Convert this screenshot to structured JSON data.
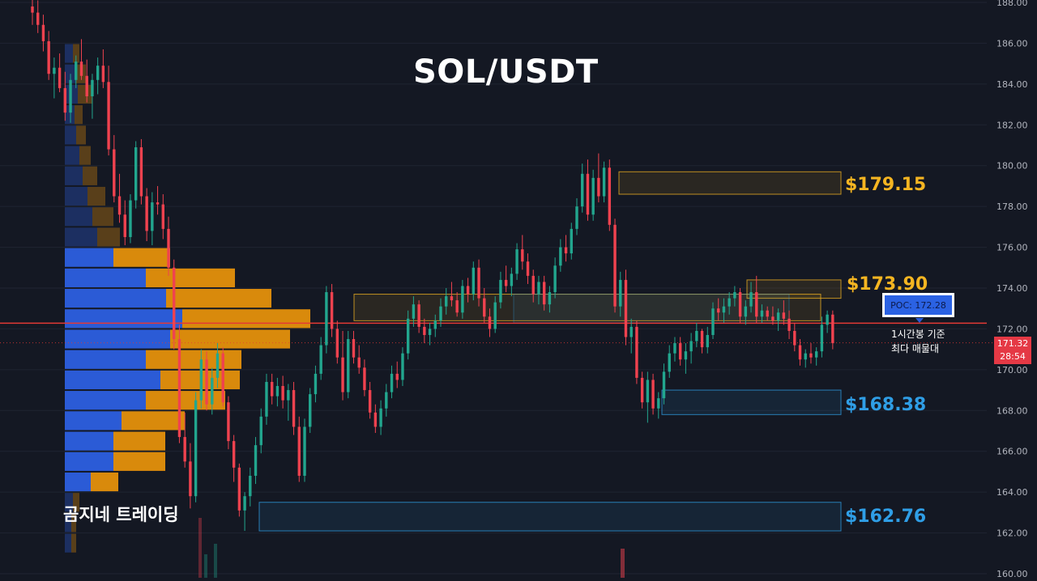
{
  "header": {
    "title": "SOL/USDT"
  },
  "watermark": "곰지네 트레이딩",
  "poc": {
    "badge_label": "POC: 172.28",
    "caption_line1": "1시간봉 기준",
    "caption_line2": "최다 매물대",
    "value": 172.28
  },
  "current_price": {
    "price": "171.32",
    "countdown": "28:54",
    "value": 171.32
  },
  "colors": {
    "background": "#141823",
    "up_candle": "#22a68e",
    "down_candle": "#f0424f",
    "resistance": "#f5b521",
    "support": "#2f9ee6",
    "poc_line": "#e53935",
    "volume_buy": "#2b5bd6",
    "volume_sell": "#d98a0c"
  },
  "zone_labels": [
    {
      "text": "$179.15",
      "kind": "resistance"
    },
    {
      "text": "$173.90",
      "kind": "resistance"
    },
    {
      "text": "$168.38",
      "kind": "support"
    },
    {
      "text": "$162.76",
      "kind": "support"
    }
  ],
  "chart_data": {
    "type": "candlestick",
    "title": "SOL/USDT",
    "ylim": [
      160,
      188
    ],
    "y_ticks": [
      "160.00",
      "162.00",
      "164.00",
      "166.00",
      "168.00",
      "170.00",
      "172.00",
      "174.00",
      "176.00",
      "178.00",
      "180.00",
      "182.00",
      "184.00",
      "186.00",
      "188.00"
    ],
    "y_tick_values": [
      160,
      162,
      164,
      166,
      168,
      170,
      172,
      174,
      176,
      178,
      180,
      182,
      184,
      186,
      188
    ],
    "grid": true,
    "zones": [
      {
        "label": "$179.15",
        "kind": "resistance",
        "low": 178.6,
        "high": 179.7
      },
      {
        "label": "$173.90",
        "kind": "resistance",
        "low": 172.4,
        "high": 173.7
      },
      {
        "label": "$173.90",
        "kind": "resistance",
        "low": 173.5,
        "high": 174.4
      },
      {
        "label": "$168.38",
        "kind": "support",
        "low": 167.8,
        "high": 169.0
      },
      {
        "label": "$162.76",
        "kind": "support",
        "low": 162.1,
        "high": 163.5
      }
    ],
    "volume_profile": [
      {
        "price": 185.5,
        "buy": 10,
        "sell": 8
      },
      {
        "price": 184.5,
        "buy": 14,
        "sell": 12
      },
      {
        "price": 183.5,
        "buy": 16,
        "sell": 18
      },
      {
        "price": 182.5,
        "buy": 12,
        "sell": 10
      },
      {
        "price": 181.5,
        "buy": 14,
        "sell": 12
      },
      {
        "price": 180.5,
        "buy": 18,
        "sell": 14
      },
      {
        "price": 179.5,
        "buy": 22,
        "sell": 18
      },
      {
        "price": 178.5,
        "buy": 28,
        "sell": 22
      },
      {
        "price": 177.5,
        "buy": 34,
        "sell": 26
      },
      {
        "price": 176.5,
        "buy": 40,
        "sell": 28
      },
      {
        "price": 175.5,
        "buy": 60,
        "sell": 70
      },
      {
        "price": 174.5,
        "buy": 100,
        "sell": 110
      },
      {
        "price": 173.5,
        "buy": 125,
        "sell": 130
      },
      {
        "price": 172.5,
        "buy": 145,
        "sell": 158
      },
      {
        "price": 171.5,
        "buy": 130,
        "sell": 148
      },
      {
        "price": 170.5,
        "buy": 100,
        "sell": 118
      },
      {
        "price": 169.5,
        "buy": 118,
        "sell": 98
      },
      {
        "price": 168.5,
        "buy": 100,
        "sell": 98
      },
      {
        "price": 167.5,
        "buy": 70,
        "sell": 78
      },
      {
        "price": 166.5,
        "buy": 60,
        "sell": 64
      },
      {
        "price": 165.5,
        "buy": 60,
        "sell": 64
      },
      {
        "price": 164.5,
        "buy": 32,
        "sell": 34
      },
      {
        "price": 163.5,
        "buy": 10,
        "sell": 8
      },
      {
        "price": 162.5,
        "buy": 8,
        "sell": 6
      },
      {
        "price": 161.5,
        "buy": 8,
        "sell": 6
      }
    ],
    "candles": [
      [
        187.8,
        188.3,
        186.9,
        187.5
      ],
      [
        187.5,
        188.1,
        186.5,
        186.9
      ],
      [
        186.9,
        187.4,
        185.6,
        186.1
      ],
      [
        186.1,
        186.6,
        184.2,
        184.5
      ],
      [
        184.5,
        185.3,
        183.3,
        184.8
      ],
      [
        184.8,
        185.5,
        183.6,
        183.8
      ],
      [
        183.8,
        184.6,
        182.2,
        182.6
      ],
      [
        182.6,
        184.5,
        182.1,
        184.2
      ],
      [
        184.2,
        185.4,
        183.8,
        185.1
      ],
      [
        185.1,
        186.2,
        184.2,
        184.4
      ],
      [
        184.4,
        185.2,
        183.1,
        183.4
      ],
      [
        183.4,
        184.5,
        182.3,
        184.2
      ],
      [
        184.2,
        185.3,
        183.5,
        184.9
      ],
      [
        184.9,
        185.7,
        183.8,
        184.1
      ],
      [
        184.1,
        184.9,
        180.5,
        180.8
      ],
      [
        180.8,
        181.5,
        178.2,
        178.5
      ],
      [
        178.5,
        179.6,
        177.2,
        177.6
      ],
      [
        177.6,
        178.3,
        176.1,
        176.5
      ],
      [
        176.5,
        178.6,
        176.2,
        178.3
      ],
      [
        178.3,
        181.2,
        177.9,
        180.9
      ],
      [
        180.9,
        181.3,
        178.1,
        178.5
      ],
      [
        178.5,
        178.9,
        176.3,
        176.8
      ],
      [
        176.8,
        178.7,
        176.1,
        178.2
      ],
      [
        178.2,
        179.0,
        177.6,
        178.1
      ],
      [
        178.1,
        178.6,
        176.4,
        176.9
      ],
      [
        176.9,
        177.5,
        174.6,
        175.0
      ],
      [
        175.0,
        175.4,
        171.0,
        171.5
      ],
      [
        171.5,
        172.2,
        166.4,
        166.7
      ],
      [
        166.7,
        167.9,
        165.2,
        165.5
      ],
      [
        165.5,
        166.4,
        163.2,
        163.8
      ],
      [
        163.8,
        168.9,
        163.5,
        168.5
      ],
      [
        168.5,
        171.0,
        168.1,
        170.5
      ],
      [
        170.5,
        170.9,
        168.0,
        168.3
      ],
      [
        168.3,
        170.1,
        167.8,
        169.6
      ],
      [
        169.6,
        171.3,
        169.1,
        170.8
      ],
      [
        170.8,
        171.1,
        168.2,
        168.4
      ],
      [
        168.4,
        168.7,
        166.1,
        166.5
      ],
      [
        166.5,
        166.8,
        164.5,
        165.2
      ],
      [
        165.2,
        165.4,
        162.8,
        163.1
      ],
      [
        163.1,
        164.0,
        162.1,
        163.8
      ],
      [
        163.8,
        165.2,
        163.3,
        164.8
      ],
      [
        164.8,
        166.7,
        164.4,
        166.3
      ],
      [
        166.3,
        168.1,
        165.9,
        167.7
      ],
      [
        167.7,
        169.8,
        167.3,
        169.4
      ],
      [
        169.4,
        169.8,
        168.3,
        168.7
      ],
      [
        168.7,
        169.6,
        168.2,
        169.2
      ],
      [
        169.2,
        169.7,
        168.1,
        168.5
      ],
      [
        168.5,
        169.3,
        167.5,
        169.0
      ],
      [
        169.0,
        169.4,
        166.8,
        167.2
      ],
      [
        167.2,
        167.7,
        164.5,
        164.8
      ],
      [
        164.8,
        167.6,
        164.5,
        167.2
      ],
      [
        167.2,
        169.1,
        166.9,
        168.8
      ],
      [
        168.8,
        170.2,
        168.4,
        169.8
      ],
      [
        169.8,
        171.6,
        169.5,
        171.2
      ],
      [
        171.2,
        174.1,
        170.8,
        173.8
      ],
      [
        173.8,
        174.2,
        171.6,
        172.0
      ],
      [
        172.0,
        172.4,
        170.3,
        170.6
      ],
      [
        170.6,
        171.9,
        168.5,
        168.9
      ],
      [
        168.9,
        171.9,
        168.6,
        171.5
      ],
      [
        171.5,
        171.9,
        170.3,
        170.6
      ],
      [
        170.6,
        171.2,
        169.8,
        170.1
      ],
      [
        170.1,
        170.5,
        168.7,
        169.0
      ],
      [
        169.0,
        169.4,
        167.6,
        167.9
      ],
      [
        167.9,
        168.3,
        166.9,
        167.2
      ],
      [
        167.2,
        168.5,
        166.8,
        168.1
      ],
      [
        168.1,
        169.3,
        167.7,
        168.9
      ],
      [
        168.9,
        170.2,
        168.6,
        169.8
      ],
      [
        169.8,
        170.4,
        169.1,
        169.5
      ],
      [
        169.5,
        171.1,
        169.2,
        170.8
      ],
      [
        170.8,
        172.9,
        170.5,
        172.5
      ],
      [
        172.5,
        173.6,
        172.1,
        173.2
      ],
      [
        173.2,
        173.4,
        171.8,
        172.1
      ],
      [
        172.1,
        172.5,
        171.3,
        171.7
      ],
      [
        171.7,
        172.3,
        171.2,
        172.0
      ],
      [
        172.0,
        172.7,
        171.6,
        172.4
      ],
      [
        172.4,
        173.5,
        172.1,
        173.1
      ],
      [
        173.1,
        174.0,
        172.7,
        173.6
      ],
      [
        173.6,
        174.3,
        173.1,
        173.4
      ],
      [
        173.4,
        173.8,
        172.6,
        172.8
      ],
      [
        172.8,
        174.4,
        172.5,
        174.1
      ],
      [
        174.1,
        174.5,
        173.3,
        173.7
      ],
      [
        173.7,
        175.3,
        173.4,
        175.0
      ],
      [
        175.0,
        175.4,
        173.1,
        173.5
      ],
      [
        173.5,
        174.0,
        172.3,
        172.6
      ],
      [
        172.6,
        173.0,
        171.6,
        172.0
      ],
      [
        172.0,
        173.6,
        171.8,
        173.3
      ],
      [
        173.3,
        174.8,
        173.0,
        174.4
      ],
      [
        174.4,
        175.1,
        173.8,
        174.1
      ],
      [
        174.1,
        175.0,
        173.6,
        174.7
      ],
      [
        174.7,
        176.2,
        174.4,
        175.9
      ],
      [
        175.9,
        176.6,
        174.9,
        175.3
      ],
      [
        175.3,
        175.7,
        174.2,
        174.6
      ],
      [
        174.6,
        174.9,
        173.3,
        173.7
      ],
      [
        173.7,
        174.6,
        173.2,
        174.3
      ],
      [
        174.3,
        174.6,
        172.9,
        173.2
      ],
      [
        173.2,
        174.1,
        172.8,
        173.8
      ],
      [
        173.8,
        175.5,
        173.5,
        175.1
      ],
      [
        175.1,
        176.4,
        174.8,
        176.0
      ],
      [
        176.0,
        176.6,
        175.3,
        175.7
      ],
      [
        175.7,
        177.2,
        175.4,
        176.9
      ],
      [
        176.9,
        178.4,
        176.6,
        178.0
      ],
      [
        178.0,
        180.1,
        177.7,
        179.6
      ],
      [
        179.6,
        180.3,
        177.3,
        177.6
      ],
      [
        177.6,
        179.8,
        177.3,
        179.4
      ],
      [
        179.4,
        180.6,
        178.2,
        178.5
      ],
      [
        178.5,
        180.2,
        178.2,
        179.9
      ],
      [
        179.9,
        180.3,
        176.8,
        177.1
      ],
      [
        177.1,
        177.4,
        172.8,
        173.1
      ],
      [
        173.1,
        174.8,
        172.6,
        174.4
      ],
      [
        174.4,
        174.9,
        171.2,
        171.6
      ],
      [
        171.6,
        172.5,
        170.8,
        172.1
      ],
      [
        172.1,
        172.4,
        169.3,
        169.6
      ],
      [
        169.6,
        169.9,
        168.1,
        168.4
      ],
      [
        168.4,
        169.9,
        167.4,
        169.5
      ],
      [
        169.5,
        169.8,
        167.8,
        168.1
      ],
      [
        168.1,
        168.9,
        167.6,
        168.6
      ],
      [
        168.6,
        170.3,
        168.3,
        169.9
      ],
      [
        169.9,
        171.2,
        169.6,
        170.8
      ],
      [
        170.8,
        171.6,
        170.4,
        171.3
      ],
      [
        171.3,
        171.6,
        170.2,
        170.5
      ],
      [
        170.5,
        171.3,
        169.8,
        170.9
      ],
      [
        170.9,
        171.8,
        170.3,
        171.4
      ],
      [
        171.4,
        172.3,
        171.1,
        171.9
      ],
      [
        171.9,
        172.0,
        170.8,
        171.1
      ],
      [
        171.1,
        172.1,
        170.8,
        171.7
      ],
      [
        171.7,
        173.3,
        171.5,
        173.0
      ],
      [
        173.0,
        173.5,
        172.4,
        172.8
      ],
      [
        172.8,
        173.5,
        172.3,
        173.1
      ],
      [
        173.1,
        173.8,
        172.7,
        173.5
      ],
      [
        173.5,
        174.1,
        173.1,
        173.8
      ],
      [
        173.8,
        174.0,
        172.3,
        172.6
      ],
      [
        172.6,
        173.4,
        172.2,
        173.1
      ],
      [
        173.1,
        174.3,
        172.8,
        173.8
      ],
      [
        173.8,
        174.6,
        172.3,
        172.6
      ],
      [
        172.6,
        173.2,
        172.3,
        172.9
      ],
      [
        172.9,
        173.1,
        172.4,
        172.6
      ],
      [
        172.6,
        173.1,
        172.2,
        172.4
      ],
      [
        172.4,
        173.0,
        171.9,
        172.8
      ],
      [
        172.8,
        173.4,
        172.2,
        172.5
      ],
      [
        172.5,
        172.9,
        171.5,
        171.9
      ],
      [
        171.9,
        172.3,
        170.9,
        171.2
      ],
      [
        171.2,
        171.5,
        170.2,
        170.5
      ],
      [
        170.5,
        171.0,
        170.1,
        170.8
      ],
      [
        170.8,
        171.3,
        170.3,
        170.6
      ],
      [
        170.6,
        171.1,
        170.2,
        170.9
      ],
      [
        170.9,
        172.6,
        170.6,
        172.2
      ],
      [
        172.2,
        172.9,
        171.8,
        172.7
      ],
      [
        172.7,
        172.9,
        171.0,
        171.3
      ]
    ]
  }
}
